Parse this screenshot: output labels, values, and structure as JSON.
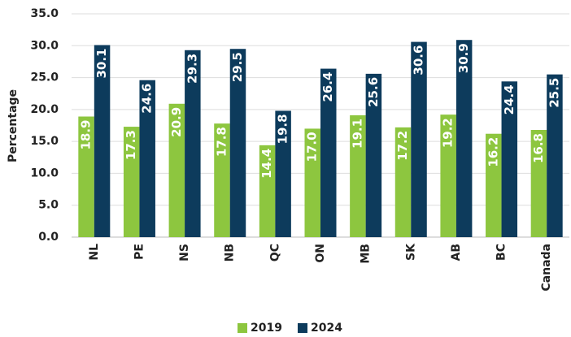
{
  "chart_data": {
    "type": "bar",
    "categories": [
      "NL",
      "PE",
      "NS",
      "NB",
      "QC",
      "ON",
      "MB",
      "SK",
      "AB",
      "BC",
      "Canada"
    ],
    "series": [
      {
        "name": "2019",
        "color": "#8dc63f",
        "values": [
          18.9,
          17.3,
          20.9,
          17.8,
          14.4,
          17.0,
          19.1,
          17.2,
          19.2,
          16.2,
          16.8
        ],
        "value_labels": [
          "18.9",
          "17.3",
          "20.9",
          "17.8",
          "14.4",
          "17.0",
          "19.1",
          "17.2",
          "19.2",
          "16.2",
          "16.8"
        ]
      },
      {
        "name": "2024",
        "color": "#0d3b5c",
        "values": [
          30.1,
          24.6,
          29.3,
          29.5,
          19.8,
          26.4,
          25.6,
          30.6,
          30.9,
          24.4,
          25.5
        ],
        "value_labels": [
          "30.1",
          "24.6",
          "29.3",
          "29.5",
          "19.8",
          "26.4",
          "25.6",
          "30.6",
          "30.9",
          "24.4",
          "25.5"
        ]
      }
    ],
    "y_label": "Percentage",
    "ylim": [
      0,
      35
    ],
    "yticks": [
      {
        "value": 0,
        "label": "0.0"
      },
      {
        "value": 5,
        "label": "5.0"
      },
      {
        "value": 10,
        "label": "10.0"
      },
      {
        "value": 15,
        "label": "15.0"
      },
      {
        "value": 20,
        "label": "20.0"
      },
      {
        "value": 25,
        "label": "25.0"
      },
      {
        "value": 30,
        "label": "30.0"
      },
      {
        "value": 35,
        "label": "35.0"
      }
    ],
    "grid": true,
    "legend": "bottom"
  }
}
